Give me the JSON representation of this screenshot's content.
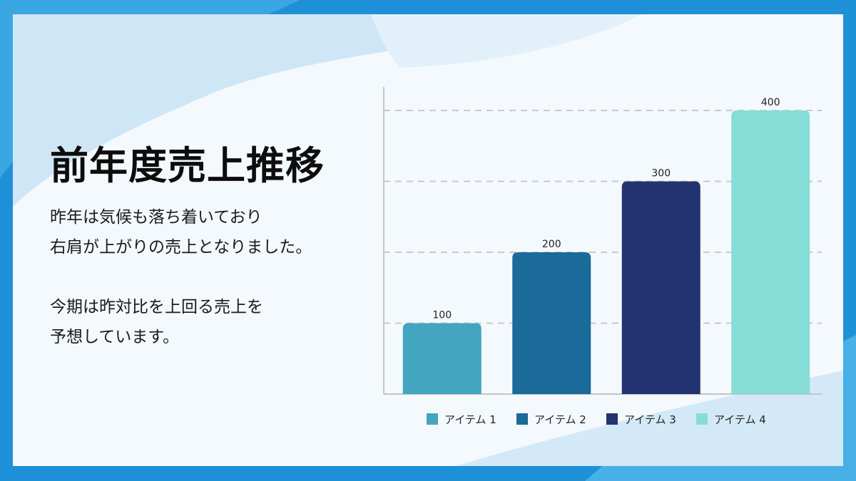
{
  "slide": {
    "title": "前年度売上推移",
    "paragraph1": [
      "昨年は気候も落ち着いており",
      "右肩が上がりの売上となりました。"
    ],
    "paragraph2": [
      "今期は昨対比を上回る売上を",
      "予想しています。"
    ]
  },
  "colors": {
    "frame": "#1e90d8",
    "panel": "#f4f9fe",
    "wave": "#cfe6f6",
    "grid": "#c9c9c9"
  },
  "chart_data": {
    "type": "bar",
    "categories": [
      "アイテム 1",
      "アイテム 2",
      "アイテム 3",
      "アイテム 4"
    ],
    "values": [
      100,
      200,
      300,
      400
    ],
    "colors": [
      "#43a5bf",
      "#1a6a9a",
      "#233270",
      "#86dcd6"
    ],
    "ylim": [
      0,
      400
    ],
    "grid": true,
    "legend": "bottom",
    "data_labels": true
  }
}
